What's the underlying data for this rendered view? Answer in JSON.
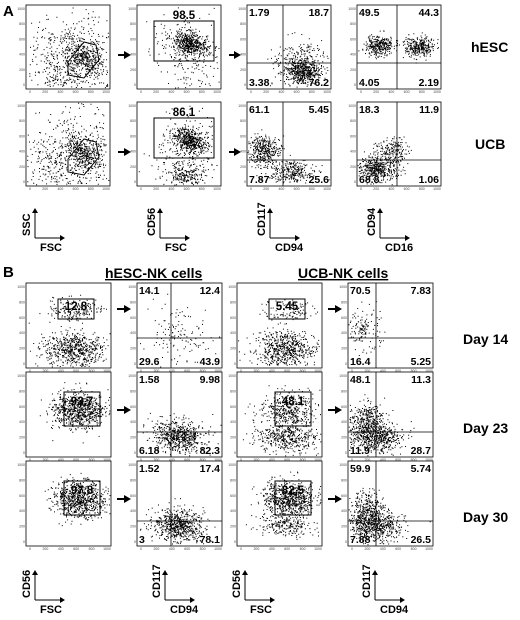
{
  "panel_a": {
    "letter": "A",
    "rows": [
      {
        "label": "hESC",
        "gate_fsc_ssc": "",
        "gate_cd56": "98.5",
        "cd117_cd94": [
          "1.79",
          "18.7",
          "3.38",
          "76.2"
        ],
        "cd94_cd16": [
          "49.5",
          "44.3",
          "4.05",
          "2.19"
        ]
      },
      {
        "label": "UCB",
        "gate_fsc_ssc": "",
        "gate_cd56": "86.1",
        "cd117_cd94": [
          "61.1",
          "5.45",
          "7.87",
          "25.6"
        ],
        "cd94_cd16": [
          "18.3",
          "11.9",
          "68.8",
          "1.06"
        ]
      }
    ],
    "axes": {
      "plot1_y": "SSC",
      "plot1_x": "FSC",
      "plot2_y": "CD56",
      "plot2_x": "FSC",
      "plot3_y": "CD117",
      "plot3_x": "CD94",
      "plot4_y": "CD94",
      "plot4_x": "CD16"
    }
  },
  "panel_b": {
    "letter": "B",
    "groups": [
      {
        "title": "hESC-NK cells",
        "gates": [
          "12.8",
          "93.7",
          "97.8"
        ],
        "quads": [
          [
            "14.1",
            "12.4",
            "29.6",
            "43.9"
          ],
          [
            "1.58",
            "9.98",
            "6.18",
            "82.3"
          ],
          [
            "1.52",
            "17.4",
            "3",
            "78.1"
          ]
        ]
      },
      {
        "title": "UCB-NK cells",
        "gates": [
          "5.45",
          "48.1",
          "82.5"
        ],
        "quads": [
          [
            "70.5",
            "7.83",
            "16.4",
            "5.25"
          ],
          [
            "48.1",
            "11.3",
            "11.9",
            "28.7"
          ],
          [
            "59.9",
            "5.74",
            "7.88",
            "26.5"
          ]
        ]
      }
    ],
    "days": [
      "Day 14",
      "Day 23",
      "Day 30"
    ],
    "axes": {
      "gate_y": "CD56",
      "gate_x": "FSC",
      "quad_y": "CD117",
      "quad_x": "CD94"
    }
  }
}
